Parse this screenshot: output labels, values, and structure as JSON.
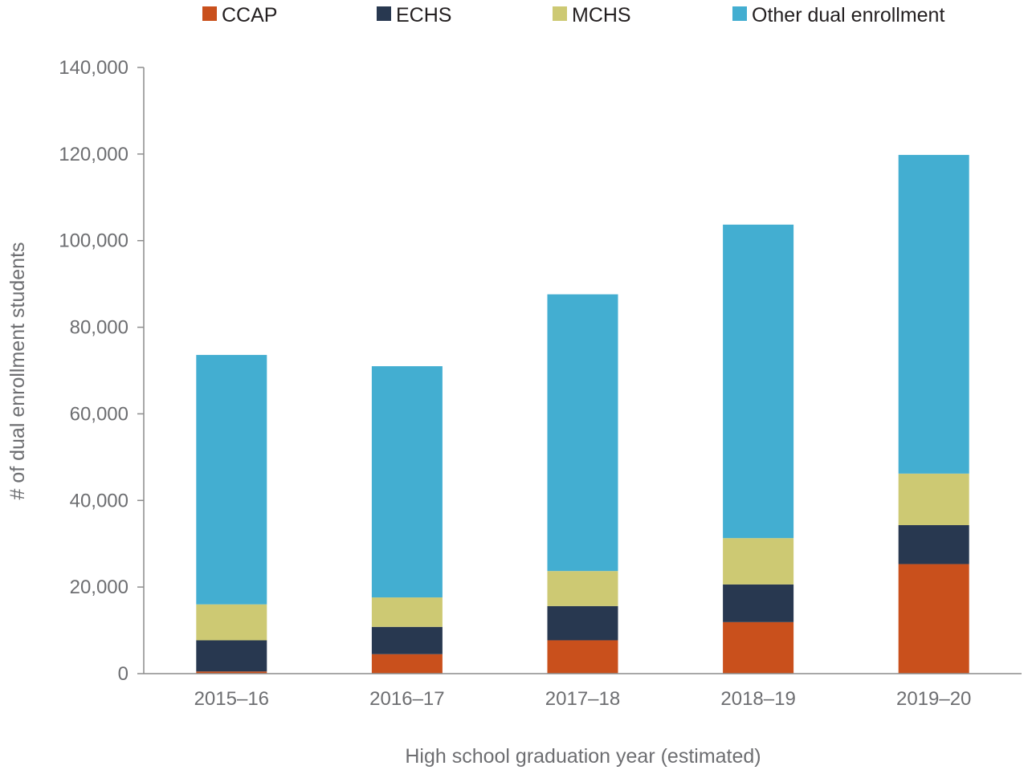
{
  "chart_data": {
    "type": "bar",
    "stacked": true,
    "title": "",
    "xlabel": "High school graduation year (estimated)",
    "ylabel": "# of dual enrollment students",
    "ylim": [
      0,
      140000
    ],
    "yticks": [
      0,
      20000,
      40000,
      60000,
      80000,
      100000,
      120000,
      140000
    ],
    "ytick_labels": [
      "0",
      "20,000",
      "40,000",
      "60,000",
      "80,000",
      "100,000",
      "120,000",
      "140,000"
    ],
    "grid": false,
    "legend_position": "top",
    "categories": [
      "2015–16",
      "2016–17",
      "2017–18",
      "2018–19",
      "2019–20"
    ],
    "series": [
      {
        "name": "CCAP",
        "color": "#c9501c",
        "values": [
          500,
          4500,
          7700,
          11900,
          25300
        ]
      },
      {
        "name": "ECHS",
        "color": "#283850",
        "values": [
          7200,
          6300,
          7900,
          8700,
          9000
        ]
      },
      {
        "name": "MCHS",
        "color": "#cdc973",
        "values": [
          8300,
          6800,
          8100,
          10700,
          11900
        ]
      },
      {
        "name": "Other dual enrollment",
        "color": "#43aed1",
        "values": [
          57600,
          53400,
          63900,
          72400,
          73600
        ]
      }
    ]
  }
}
